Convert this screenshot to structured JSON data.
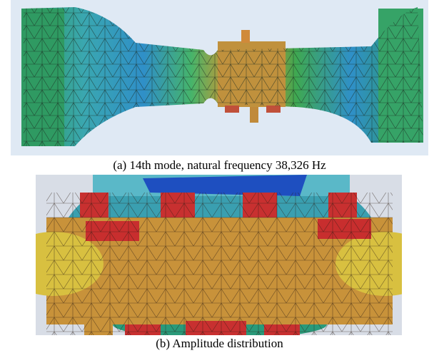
{
  "figure": {
    "panels": [
      {
        "caption": "(a) 14th mode, natural frequency 38,326 Hz"
      },
      {
        "caption": "(b) Amplitude distribution"
      }
    ]
  }
}
